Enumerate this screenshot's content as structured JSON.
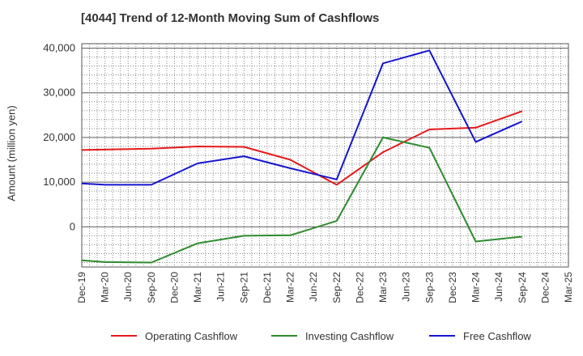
{
  "title": "[4044]  Trend of 12-Month Moving Sum of Cashflows",
  "chart_data": {
    "type": "line",
    "title": "[4044]  Trend of 12-Month Moving Sum of Cashflows",
    "xlabel": "",
    "ylabel": "Amount (million yen)",
    "categories": [
      "Dec-19",
      "Mar-20",
      "Jun-20",
      "Sep-20",
      "Dec-20",
      "Mar-21",
      "Jun-21",
      "Sep-21",
      "Dec-21",
      "Mar-22",
      "Jun-22",
      "Sep-22",
      "Dec-22",
      "Mar-23",
      "Jun-23",
      "Sep-23",
      "Dec-23",
      "Mar-24",
      "Jun-24",
      "Sep-24",
      "Dec-24",
      "Mar-25"
    ],
    "ylim": [
      -9000,
      41000
    ],
    "yticks": [
      0,
      10000,
      20000,
      30000,
      40000
    ],
    "ytick_labels": [
      "0",
      "10,000",
      "20,000",
      "30,000",
      "40,000"
    ],
    "grid": true,
    "legend_position": "bottom",
    "series": [
      {
        "name": "Operating Cashflow",
        "color": "#e41a1c",
        "values": [
          17200,
          null,
          null,
          17500,
          null,
          18000,
          null,
          17900,
          null,
          15000,
          null,
          9400,
          null,
          16700,
          null,
          21800,
          null,
          22200,
          null,
          25900,
          null,
          null
        ]
      },
      {
        "name": "Investing Cashflow",
        "color": "#2e8b2e",
        "values": [
          -7500,
          -7900,
          null,
          -8000,
          null,
          -3700,
          null,
          -2000,
          null,
          -1900,
          null,
          1300,
          null,
          20000,
          null,
          17700,
          null,
          -3300,
          null,
          -2200,
          null,
          null
        ]
      },
      {
        "name": "Free Cashflow",
        "color": "#1515d0",
        "values": [
          9700,
          9400,
          null,
          9400,
          null,
          14200,
          null,
          15800,
          null,
          13100,
          null,
          10600,
          null,
          36600,
          null,
          39500,
          null,
          19000,
          null,
          23600,
          null,
          null
        ]
      }
    ]
  }
}
